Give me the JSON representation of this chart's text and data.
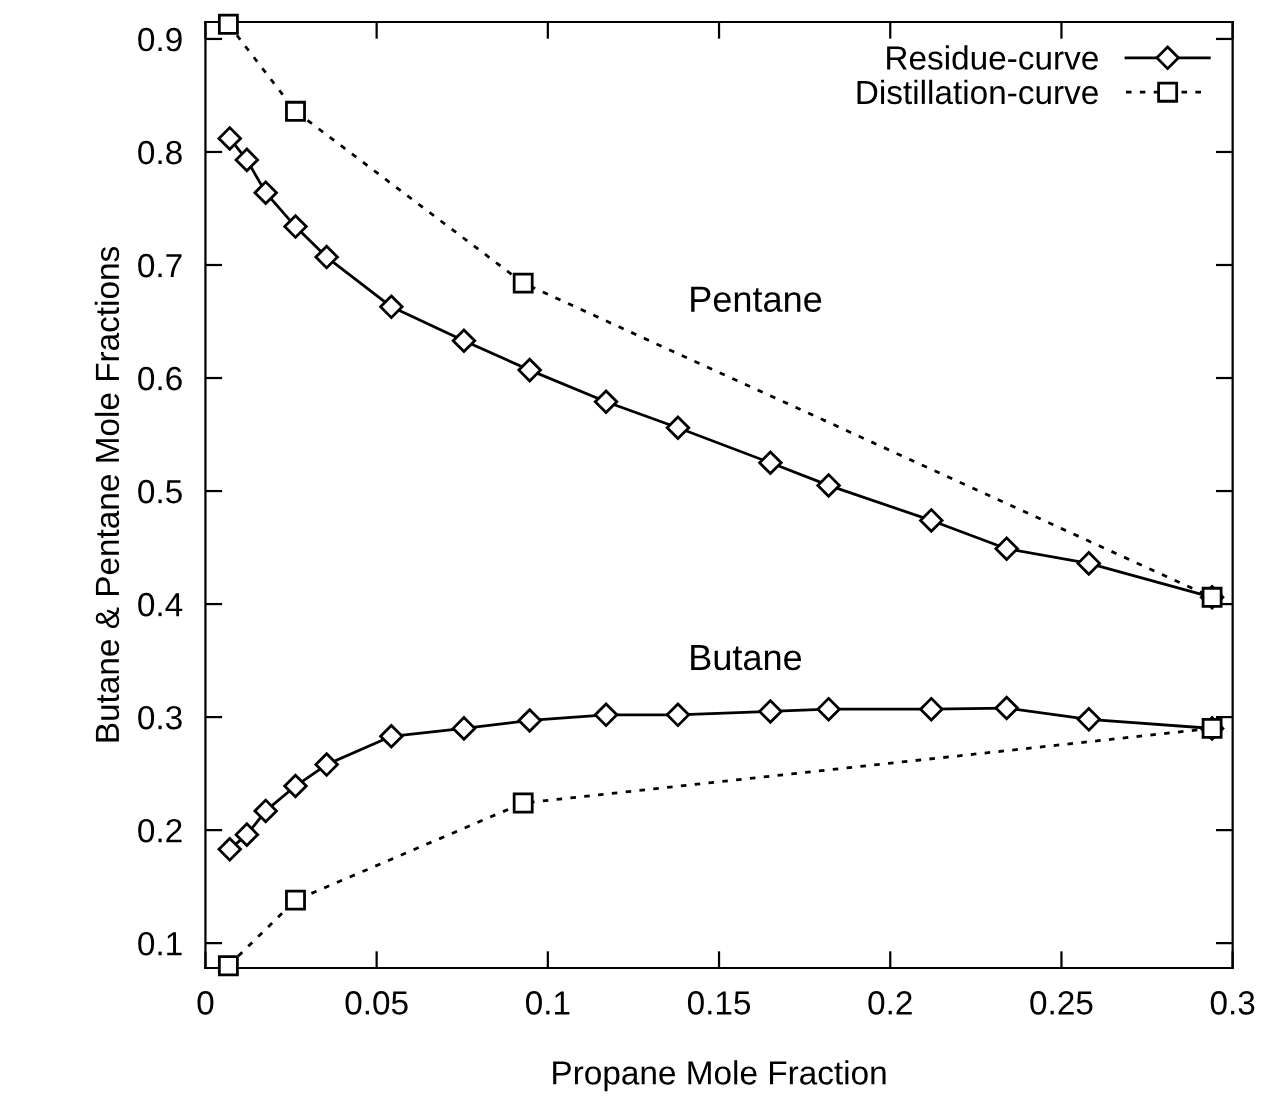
{
  "chart_data": {
    "type": "line",
    "xlabel": "Propane Mole Fraction",
    "ylabel": "Butane & Pentane Mole Fractions",
    "xlim": [
      0,
      0.3
    ],
    "ylim": [
      0.078,
      0.915
    ],
    "xticks": [
      0,
      0.05,
      0.1,
      0.15,
      0.2,
      0.25,
      0.3
    ],
    "yticks": [
      0.1,
      0.2,
      0.3,
      0.4,
      0.5,
      0.6,
      0.7,
      0.8,
      0.9
    ],
    "grid": false,
    "legend": "top right",
    "series": [
      {
        "name": "Residue-curve",
        "color": "#000000",
        "marker": "diamond",
        "line_style": "solid",
        "x": [
          0.0071,
          0.0121,
          0.0176,
          0.0263,
          0.0354,
          0.0543,
          0.0755,
          0.0947,
          0.117,
          0.138,
          0.165,
          0.182,
          0.212,
          0.234,
          0.258,
          0.294
        ],
        "values": [
          0.812,
          0.793,
          0.764,
          0.734,
          0.707,
          0.663,
          0.633,
          0.607,
          0.579,
          0.556,
          0.525,
          0.505,
          0.474,
          0.449,
          0.436,
          0.406
        ]
      },
      {
        "color": "#000000",
        "marker": "diamond",
        "line_style": "solid",
        "x": [
          0.0071,
          0.0121,
          0.0176,
          0.0263,
          0.0354,
          0.0543,
          0.0755,
          0.0947,
          0.117,
          0.138,
          0.165,
          0.182,
          0.212,
          0.234,
          0.258,
          0.294
        ],
        "values": [
          0.183,
          0.196,
          0.217,
          0.239,
          0.258,
          0.283,
          0.29,
          0.297,
          0.302,
          0.302,
          0.305,
          0.307,
          0.307,
          0.308,
          0.298,
          0.29
        ]
      },
      {
        "name": "Distillation-curve",
        "color": "#000000",
        "marker": "square",
        "line_style": "dotted",
        "x": [
          0.0067,
          0.0263,
          0.0928,
          0.294
        ],
        "values": [
          0.913,
          0.836,
          0.684,
          0.406
        ]
      },
      {
        "color": "#000000",
        "marker": "square",
        "line_style": "dotted",
        "x": [
          0.0067,
          0.0263,
          0.0928,
          0.294
        ],
        "values": [
          0.08,
          0.138,
          0.224,
          0.29
        ]
      }
    ],
    "annotations": [
      "Pentane",
      "Butane"
    ]
  }
}
